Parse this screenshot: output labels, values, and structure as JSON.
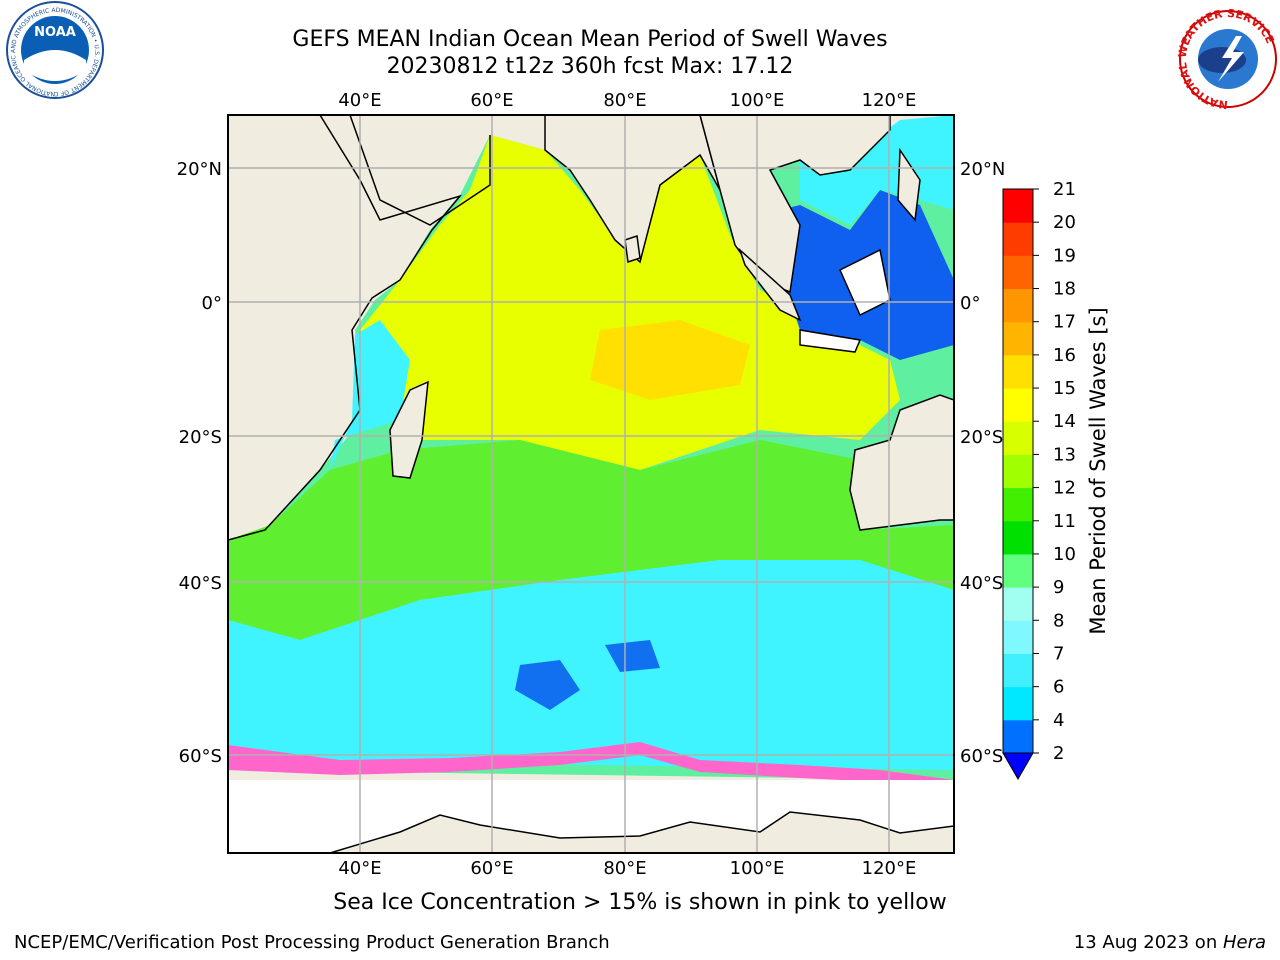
{
  "title_line1": "GEFS MEAN Indian Ocean Mean Period of Swell Waves",
  "title_line2": "20230812 t12z 360h fcst   Max: 17.12",
  "lon_ticks": [
    "40°E",
    "60°E",
    "80°E",
    "100°E",
    "120°E"
  ],
  "lat_ticks": [
    "20°N",
    "0°",
    "20°S",
    "40°S",
    "60°S"
  ],
  "colorbar": {
    "label": "Mean Period of Swell Waves [s]",
    "ticks": [
      "2",
      "4",
      "6",
      "7",
      "8",
      "9",
      "10",
      "11",
      "12",
      "13",
      "14",
      "15",
      "16",
      "17",
      "18",
      "19",
      "20",
      "21"
    ],
    "colors": [
      "#0070ff",
      "#00e8ff",
      "#40f0ff",
      "#80f8ff",
      "#a0fff0",
      "#60ff80",
      "#00e000",
      "#40f000",
      "#a0ff00",
      "#d8ff00",
      "#ffff00",
      "#ffe000",
      "#ffb400",
      "#ff9600",
      "#ff6400",
      "#ff3c00",
      "#ff0000"
    ],
    "under_color": "#0000ff"
  },
  "caption": "Sea Ice Concentration > 15% is shown in pink to yellow",
  "footer_left": "NCEP/EMC/Verification Post Processing Product Generation Branch",
  "footer_right_prefix": "13 Aug 2023 on ",
  "footer_right_host": "Hera",
  "logos": {
    "noaa": "NOAA",
    "noaa_ring": "NATIONAL OCEANIC AND ATMOSPHERIC ADMINISTRATION • U.S. DEPARTMENT OF COMMERCE",
    "nws_ring": "NATIONAL WEATHER SERVICE"
  }
}
